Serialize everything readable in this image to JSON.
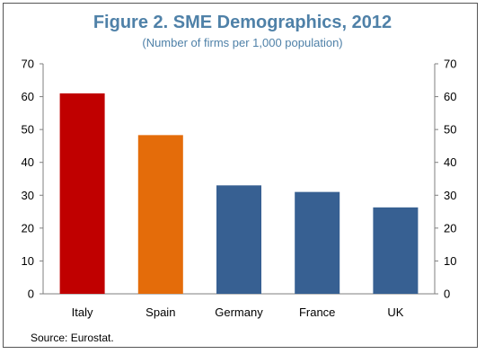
{
  "chart_data": {
    "type": "bar",
    "title": "Figure 2. SME Demographics, 2012",
    "subtitle": "(Number of firms per 1,000 population)",
    "categories": [
      "Italy",
      "Spain",
      "Germany",
      "France",
      "UK"
    ],
    "values": [
      61,
      48.3,
      33,
      31,
      26.3
    ],
    "colors": [
      "#c00000",
      "#e46c0a",
      "#376092",
      "#376092",
      "#376092"
    ],
    "ylim": [
      0,
      70
    ],
    "yticks": [
      "0",
      "10",
      "20",
      "30",
      "40",
      "50",
      "60",
      "70"
    ],
    "xlabel": "",
    "ylabel": "",
    "grid": false,
    "legend": "none",
    "source": "Source: Eurostat."
  }
}
